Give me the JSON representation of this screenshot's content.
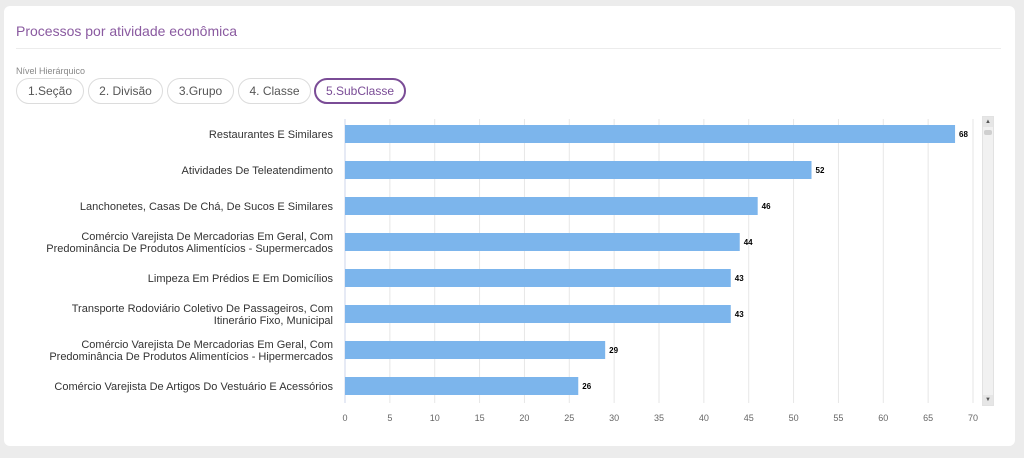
{
  "panel": {
    "title": "Processos por atividade econômica",
    "level_label": "Nível Hierárquico",
    "tabs": [
      {
        "label": "1.Seção",
        "active": false
      },
      {
        "label": "2. Divisão",
        "active": false
      },
      {
        "label": "3.Grupo",
        "active": false
      },
      {
        "label": "4. Classe",
        "active": false
      },
      {
        "label": "5.SubClasse",
        "active": true
      }
    ]
  },
  "colors": {
    "bar": "#7cb5ec",
    "accent": "#7a4c96",
    "title": "#8a5aa0"
  },
  "chart_data": {
    "type": "bar",
    "orientation": "horizontal",
    "categories": [
      [
        "Restaurantes E Similares"
      ],
      [
        "Atividades De Teleatendimento"
      ],
      [
        "Lanchonetes, Casas De Chá, De Sucos E Similares"
      ],
      [
        "Comércio Varejista De Mercadorias Em Geral, Com",
        "Predominância De Produtos Alimentícios - Supermercados"
      ],
      [
        "Limpeza Em Prédios E Em Domicílios"
      ],
      [
        "Transporte Rodoviário Coletivo De Passageiros, Com",
        "Itinerário Fixo, Municipal"
      ],
      [
        "Comércio Varejista De Mercadorias Em Geral, Com",
        "Predominância De Produtos Alimentícios - Hipermercados"
      ],
      [
        "Comércio Varejista De Artigos Do Vestuário E Acessórios"
      ]
    ],
    "values": [
      68,
      52,
      46,
      44,
      43,
      43,
      29,
      26
    ],
    "xlim": [
      0,
      70
    ],
    "xticks": [
      0,
      5,
      10,
      15,
      20,
      25,
      30,
      35,
      40,
      45,
      50,
      55,
      60,
      65,
      70
    ],
    "grid": true,
    "data_labels": true
  }
}
